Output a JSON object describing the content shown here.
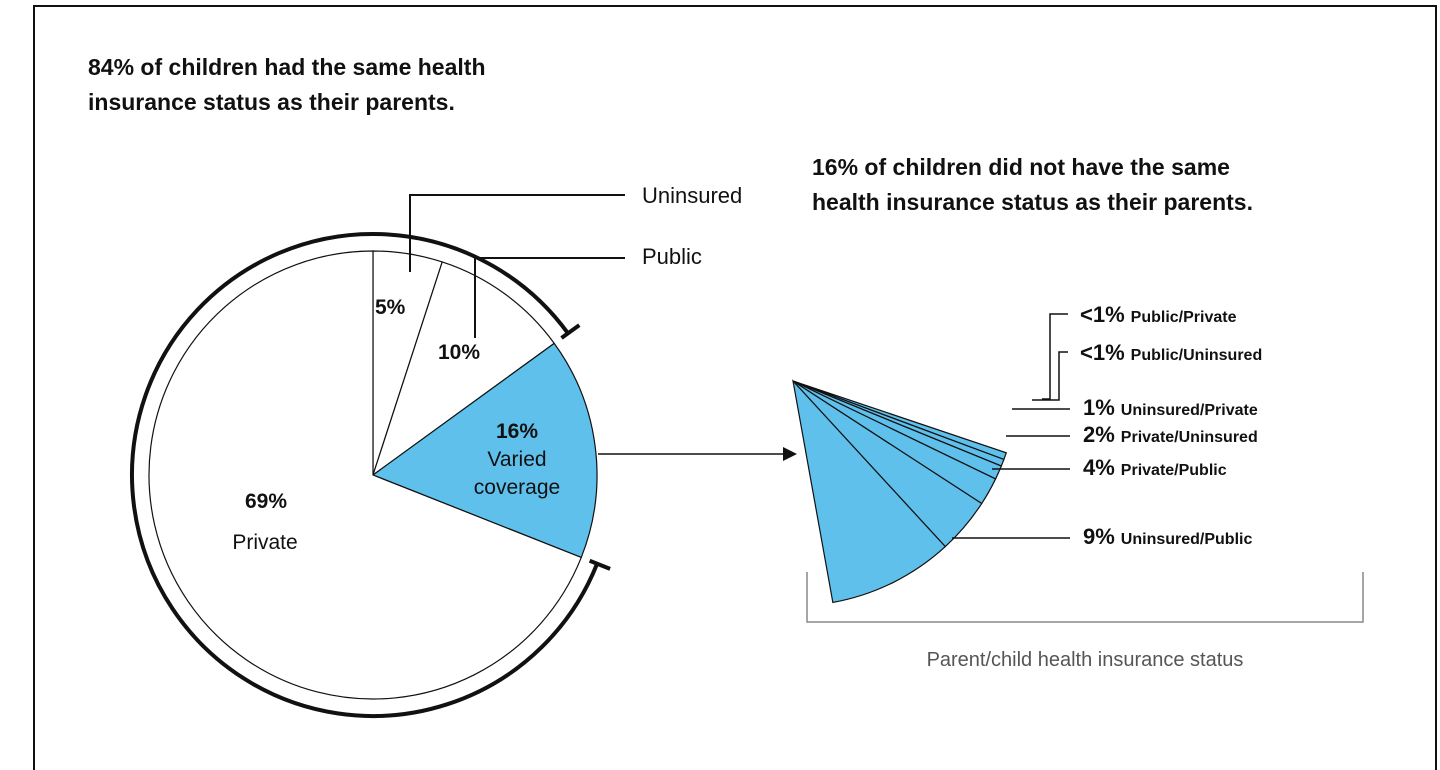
{
  "headings": {
    "left_line1": "84% of children had the same health",
    "left_line2": "insurance status as their parents.",
    "right_line1": "16% of children did not have the same",
    "right_line2": "health insurance status as their parents."
  },
  "bracket_caption": "Parent/child health insurance status",
  "colors": {
    "varied": "#5fc0ec",
    "outline": "#111111",
    "background": "#ffffff"
  },
  "chart_data": [
    {
      "type": "pie",
      "slices": [
        {
          "key": "uninsured",
          "value": 5,
          "pct_label": "5%",
          "name": "Uninsured",
          "color": "#ffffff"
        },
        {
          "key": "public",
          "value": 10,
          "pct_label": "10%",
          "name": "Public",
          "color": "#ffffff"
        },
        {
          "key": "varied",
          "value": 16,
          "pct_label": "16%",
          "name_line1": "Varied",
          "name_line2": "coverage",
          "color": "#5fc0ec"
        },
        {
          "key": "private",
          "value": 69,
          "pct_label": "69%",
          "name": "Private",
          "color": "#ffffff"
        }
      ]
    },
    {
      "type": "pie",
      "slices": [
        {
          "key": "pub_priv",
          "value": 0.5,
          "pct_label": "<1%",
          "name": "Public/Private"
        },
        {
          "key": "pub_unins",
          "value": 0.5,
          "pct_label": "<1%",
          "name": "Public/Uninsured"
        },
        {
          "key": "unins_priv",
          "value": 1,
          "pct_label": "1%",
          "name": "Uninsured/Private"
        },
        {
          "key": "priv_unins",
          "value": 2,
          "pct_label": "2%",
          "name": "Private/Uninsured"
        },
        {
          "key": "priv_pub",
          "value": 4,
          "pct_label": "4%",
          "name": "Private/Public"
        },
        {
          "key": "unins_pub",
          "value": 9,
          "pct_label": "9%",
          "name": "Uninsured/Public"
        }
      ]
    }
  ]
}
